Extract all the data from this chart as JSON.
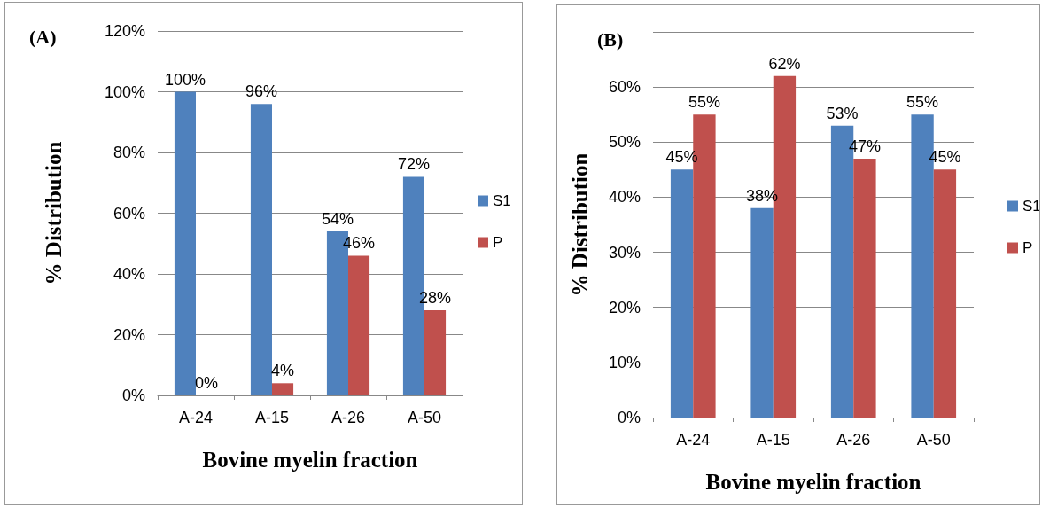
{
  "chart_data": [
    {
      "type": "bar",
      "title": "(A)",
      "xlabel": "Bovine myelin fraction",
      "ylabel": "% Distribution",
      "categories": [
        "A-24",
        "A-15",
        "A-26",
        "A-50"
      ],
      "series": [
        {
          "name": "S1",
          "color": "#4f81bd",
          "values": [
            100,
            96,
            54,
            72
          ],
          "value_labels": [
            "100%",
            "96%",
            "54%",
            "72%"
          ]
        },
        {
          "name": "P",
          "color": "#c0504d",
          "values": [
            0,
            4,
            46,
            28
          ],
          "value_labels": [
            "0%",
            "4%",
            "46%",
            "28%"
          ]
        }
      ],
      "ylim": [
        0,
        120
      ],
      "yticks": [
        {
          "value": 0,
          "label": "0%"
        },
        {
          "value": 20,
          "label": "20%"
        },
        {
          "value": 40,
          "label": "40%"
        },
        {
          "value": 60,
          "label": "60%"
        },
        {
          "value": 80,
          "label": "80%"
        },
        {
          "value": 100,
          "label": "100%"
        },
        {
          "value": 120,
          "label": "120%"
        }
      ],
      "grid": "y",
      "legend": "right"
    },
    {
      "type": "bar",
      "title": "(B)",
      "xlabel": "Bovine myelin fraction",
      "ylabel": "% Distribution",
      "categories": [
        "A-24",
        "A-15",
        "A-26",
        "A-50"
      ],
      "series": [
        {
          "name": "S1",
          "color": "#4f81bd",
          "values": [
            45,
            38,
            53,
            55
          ],
          "value_labels": [
            "45%",
            "38%",
            "53%",
            "55%"
          ]
        },
        {
          "name": "P",
          "color": "#c0504d",
          "values": [
            55,
            62,
            47,
            45
          ],
          "value_labels": [
            "55%",
            "62%",
            "47%",
            "45%"
          ]
        }
      ],
      "ylim": [
        0,
        70
      ],
      "yticks": [
        {
          "value": 0,
          "label": "0%"
        },
        {
          "value": 10,
          "label": "10%"
        },
        {
          "value": 20,
          "label": "20%"
        },
        {
          "value": 30,
          "label": "30%"
        },
        {
          "value": 40,
          "label": "40%"
        },
        {
          "value": 50,
          "label": "50%"
        },
        {
          "value": 60,
          "label": "60%"
        },
        {
          "value": 70,
          "label": null
        }
      ],
      "grid": "y",
      "legend": "right"
    }
  ]
}
